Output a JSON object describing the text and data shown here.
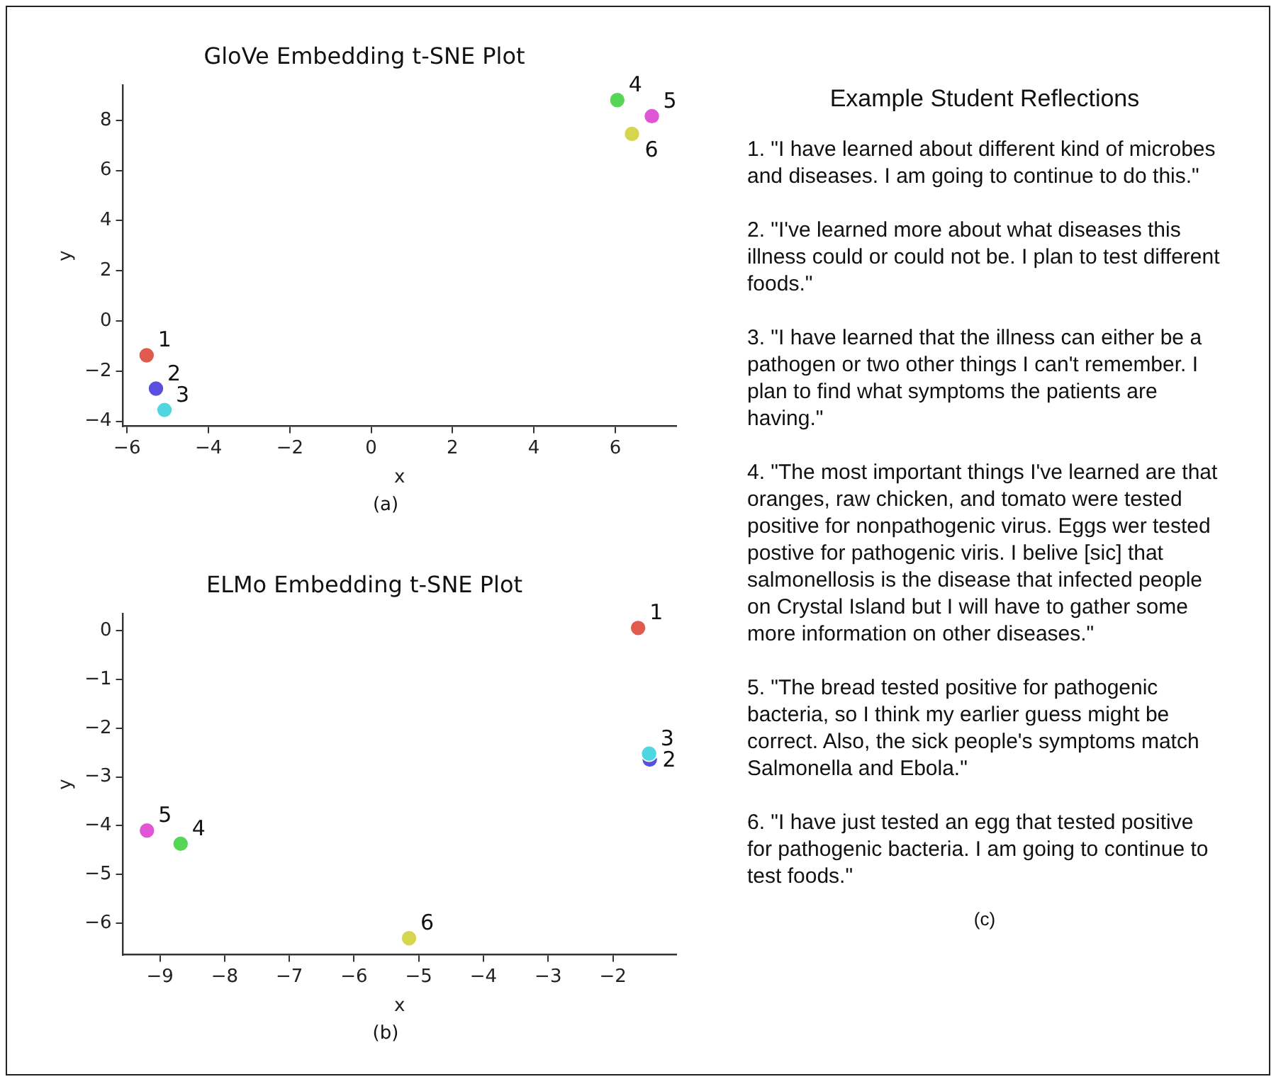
{
  "chart_data": [
    {
      "type": "scatter",
      "title": "GloVe Embedding t-SNE Plot",
      "xlabel": "x",
      "ylabel": "y",
      "annotations": [
        "(a)"
      ],
      "xlim": [
        -6.1,
        7.5
      ],
      "ylim": [
        -4.2,
        9.4
      ],
      "xticks": [
        {
          "value": -6,
          "label": "−6"
        },
        {
          "value": -4,
          "label": "−4"
        },
        {
          "value": -2,
          "label": "−2"
        },
        0,
        2,
        4,
        6
      ],
      "yticks": [
        {
          "value": -4,
          "label": "−4"
        },
        {
          "value": -2,
          "label": "−2"
        },
        0,
        2,
        4,
        6,
        8
      ],
      "grid": false,
      "legend": false,
      "marker": "circle",
      "series": [
        {
          "name": "1",
          "color": "#e05a4e",
          "x": [
            -5.52
          ],
          "values": [
            -1.37
          ]
        },
        {
          "name": "2",
          "color": "#5a50e0",
          "x": [
            -5.29
          ],
          "values": [
            -2.7
          ]
        },
        {
          "name": "3",
          "color": "#4fd6e0",
          "x": [
            -5.08
          ],
          "values": [
            -3.55
          ]
        },
        {
          "name": "4",
          "color": "#55d655",
          "x": [
            6.05
          ],
          "values": [
            8.81
          ]
        },
        {
          "name": "5",
          "color": "#e055d6",
          "x": [
            6.9
          ],
          "values": [
            8.17
          ]
        },
        {
          "name": "6",
          "color": "#d6d64e",
          "x": [
            6.41
          ],
          "values": [
            7.46
          ]
        }
      ]
    },
    {
      "type": "scatter",
      "title": "ELMo Embedding t-SNE Plot",
      "xlabel": "x",
      "ylabel": "y",
      "annotations": [
        "(b)"
      ],
      "xlim": [
        -9.57,
        -1.02
      ],
      "ylim": [
        -6.65,
        0.35
      ],
      "xticks": [
        {
          "value": -9,
          "label": "−9"
        },
        {
          "value": -8,
          "label": "−8"
        },
        {
          "value": -7,
          "label": "−7"
        },
        {
          "value": -6,
          "label": "−6"
        },
        {
          "value": -5,
          "label": "−5"
        },
        {
          "value": -4,
          "label": "−4"
        },
        {
          "value": -3,
          "label": "−3"
        },
        {
          "value": -2,
          "label": "−2"
        }
      ],
      "yticks": [
        {
          "value": -6,
          "label": "−6"
        },
        {
          "value": -5,
          "label": "−5"
        },
        {
          "value": -4,
          "label": "−4"
        },
        {
          "value": -3,
          "label": "−3"
        },
        {
          "value": -2,
          "label": "−2"
        },
        {
          "value": -1,
          "label": "−1"
        },
        0
      ],
      "grid": false,
      "legend": false,
      "marker": "circle",
      "series": [
        {
          "name": "1",
          "color": "#e05a4e",
          "x": [
            -1.61
          ],
          "values": [
            0.06
          ]
        },
        {
          "name": "2",
          "color": "#5a50e0",
          "x": [
            -1.43
          ],
          "values": [
            -2.64
          ]
        },
        {
          "name": "3",
          "color": "#4fd6e0",
          "x": [
            -1.44
          ],
          "values": [
            -2.52
          ]
        },
        {
          "name": "4",
          "color": "#55d655",
          "x": [
            -8.68
          ],
          "values": [
            -4.37
          ]
        },
        {
          "name": "5",
          "color": "#e055d6",
          "x": [
            -9.2
          ],
          "values": [
            -4.1
          ]
        },
        {
          "name": "6",
          "color": "#d6d64e",
          "x": [
            -5.15
          ],
          "values": [
            -6.31
          ]
        }
      ]
    },
    {
      "type": "other",
      "title": "Example Student Reflections",
      "annotations": [
        "1. \"I have learned about different kind of microbes and diseases. I am going to continue to do this.\"",
        "2. \"I've learned more about what diseases this illness could or could not be. I plan to test different foods.\"",
        "3. \"I have learned that the illness can either be a pathogen or two other things I can't remember. I plan to find what symptoms the patients are having.\"",
        "4. \"The most important things I've learned are that oranges, raw chicken, and tomato were tested positive for nonpathogenic virus. Eggs wer tested postive for pathogenic viris. I belive [sic] that salmonellosis is the disease that infected people on Crystal Island but I will have to gather some more information on other diseases.\"",
        "5. \"The bread tested positive for pathogenic bacteria, so I think my earlier guess might be correct. Also, the sick people's symptoms match Salmonella and Ebola.\"",
        "6. \"I have just tested an egg that tested positive for pathogenic bacteria. I am going to continue to test foods.\"",
        "(c)"
      ]
    }
  ]
}
